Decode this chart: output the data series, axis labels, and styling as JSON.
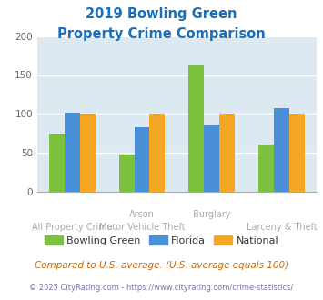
{
  "title_line1": "2019 Bowling Green",
  "title_line2": "Property Crime Comparison",
  "title_color": "#1a6fba",
  "tick_labels_row1": [
    "",
    "Arson",
    "Burglary",
    ""
  ],
  "tick_labels_row2": [
    "All Property Crime",
    "Motor Vehicle Theft",
    "",
    "Larceny & Theft"
  ],
  "bowling_green": [
    75,
    48,
    162,
    61
  ],
  "florida": [
    102,
    83,
    86,
    107
  ],
  "national": [
    100,
    100,
    100,
    100
  ],
  "color_bg": "#7dc23e",
  "color_fl": "#4a90d9",
  "color_nat": "#f5a623",
  "ylim": [
    0,
    200
  ],
  "yticks": [
    0,
    50,
    100,
    150,
    200
  ],
  "legend_labels": [
    "Bowling Green",
    "Florida",
    "National"
  ],
  "footnote1": "Compared to U.S. average. (U.S. average equals 100)",
  "footnote2": "© 2025 CityRating.com - https://www.cityrating.com/crime-statistics/",
  "footnote1_color": "#cc6600",
  "footnote2_color": "#7777aa",
  "chart_bg": "#dce9f0",
  "tick_label_color": "#aaaaaa"
}
